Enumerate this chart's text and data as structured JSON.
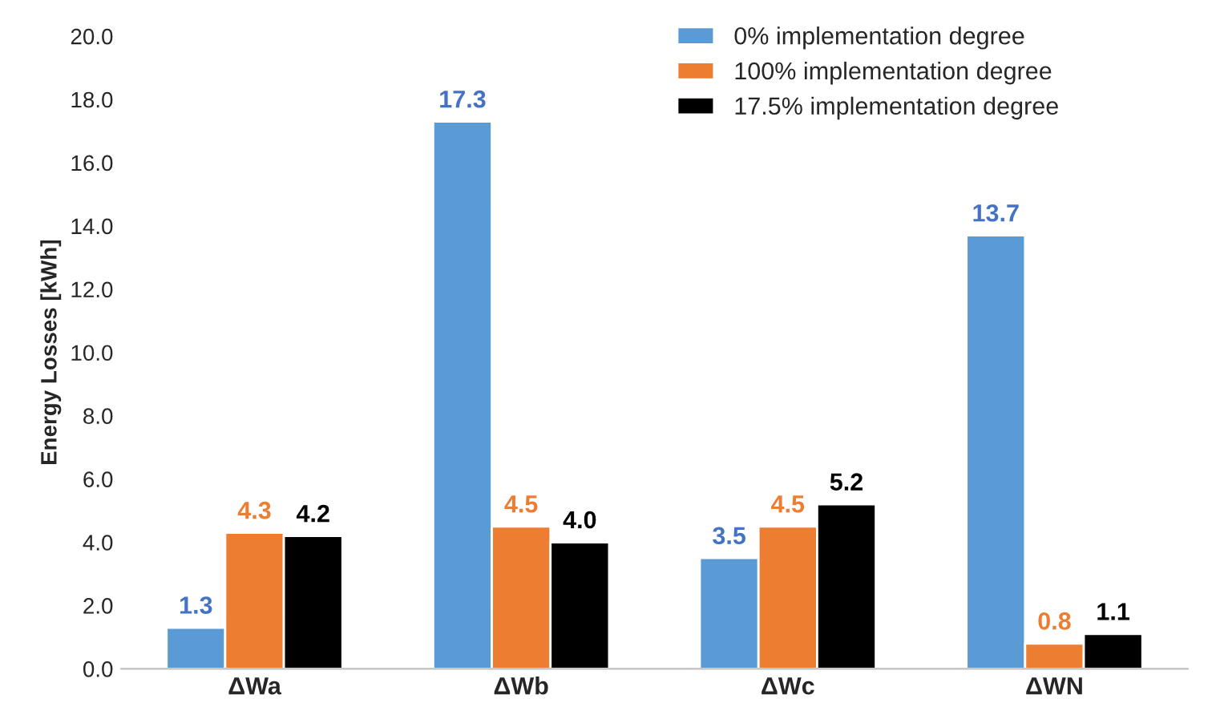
{
  "chart_data": {
    "type": "bar",
    "ylabel": "Energy Losses [kWh]",
    "categories": [
      "ΔWa",
      "ΔWb",
      "ΔWc",
      "ΔWN"
    ],
    "series": [
      {
        "name": "0% implementation degree",
        "color": "#5b9bd5",
        "values": [
          1.3,
          17.3,
          3.5,
          13.7
        ],
        "value_labels": [
          "1.3",
          "17.3",
          "3.5",
          "13.7"
        ]
      },
      {
        "name": "100% implementation degree",
        "color": "#ed7d31",
        "values": [
          4.3,
          4.5,
          4.5,
          0.8
        ],
        "value_labels": [
          "4.3",
          "4.5",
          "4.5",
          "0.8"
        ]
      },
      {
        "name": "17.5% implementation degree",
        "color": "#000000",
        "values": [
          4.2,
          4.0,
          5.2,
          1.1
        ],
        "value_labels": [
          "4.2",
          "4.0",
          "5.2",
          "1.1"
        ]
      }
    ],
    "ylim": [
      0,
      20
    ],
    "yticks": [
      {
        "value": 0,
        "label": "0.0"
      },
      {
        "value": 2,
        "label": "2.0"
      },
      {
        "value": 4,
        "label": "4.0"
      },
      {
        "value": 6,
        "label": "6.0"
      },
      {
        "value": 8,
        "label": "8.0"
      },
      {
        "value": 10,
        "label": "10.0"
      },
      {
        "value": 12,
        "label": "12.0"
      },
      {
        "value": 14,
        "label": "14.0"
      },
      {
        "value": 16,
        "label": "16.0"
      },
      {
        "value": 18,
        "label": "18.0"
      },
      {
        "value": 20,
        "label": "20.0"
      }
    ],
    "grid": false,
    "legend": "top right"
  }
}
